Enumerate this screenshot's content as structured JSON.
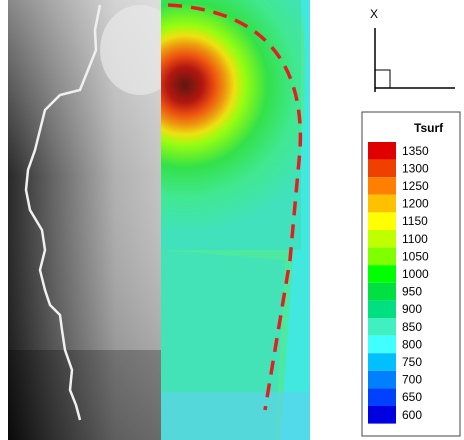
{
  "axis_indicator": {
    "label": "X"
  },
  "colorbar": {
    "title": "Tsurf",
    "levels": [
      1350,
      1300,
      1250,
      1200,
      1150,
      1100,
      1050,
      1000,
      950,
      900,
      850,
      800,
      750,
      700,
      650,
      600
    ]
  }
}
